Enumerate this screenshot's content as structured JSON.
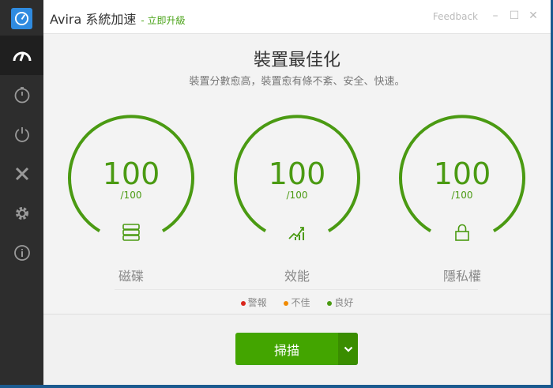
{
  "titlebar": {
    "app_title": "Avira 系統加速",
    "upgrade_link": "- 立即升級",
    "feedback": "Feedback"
  },
  "sidebar": {
    "items": [
      {
        "icon": "speedometer-icon",
        "active": true
      },
      {
        "icon": "stopwatch-icon"
      },
      {
        "icon": "power-icon"
      },
      {
        "icon": "tools-icon"
      },
      {
        "icon": "gear-icon"
      },
      {
        "icon": "info-icon"
      }
    ]
  },
  "main": {
    "title": "裝置最佳化",
    "subtitle": "裝置分數愈高，裝置愈有條不紊、安全、快速。",
    "gauges": [
      {
        "label": "磁碟",
        "score": "100",
        "max": "/100",
        "icon": "disk-icon"
      },
      {
        "label": "效能",
        "score": "100",
        "max": "/100",
        "icon": "performance-chart-icon"
      },
      {
        "label": "隱私權",
        "score": "100",
        "max": "/100",
        "icon": "lock-icon"
      }
    ],
    "legend": [
      {
        "label": "警報",
        "color": "#d9261c"
      },
      {
        "label": "不佳",
        "color": "#f08a00"
      },
      {
        "label": "良好",
        "color": "#4a9a12"
      }
    ]
  },
  "scan_button": {
    "label": "掃描"
  },
  "colors": {
    "accent": "#4a9a12",
    "button": "#43a500"
  }
}
